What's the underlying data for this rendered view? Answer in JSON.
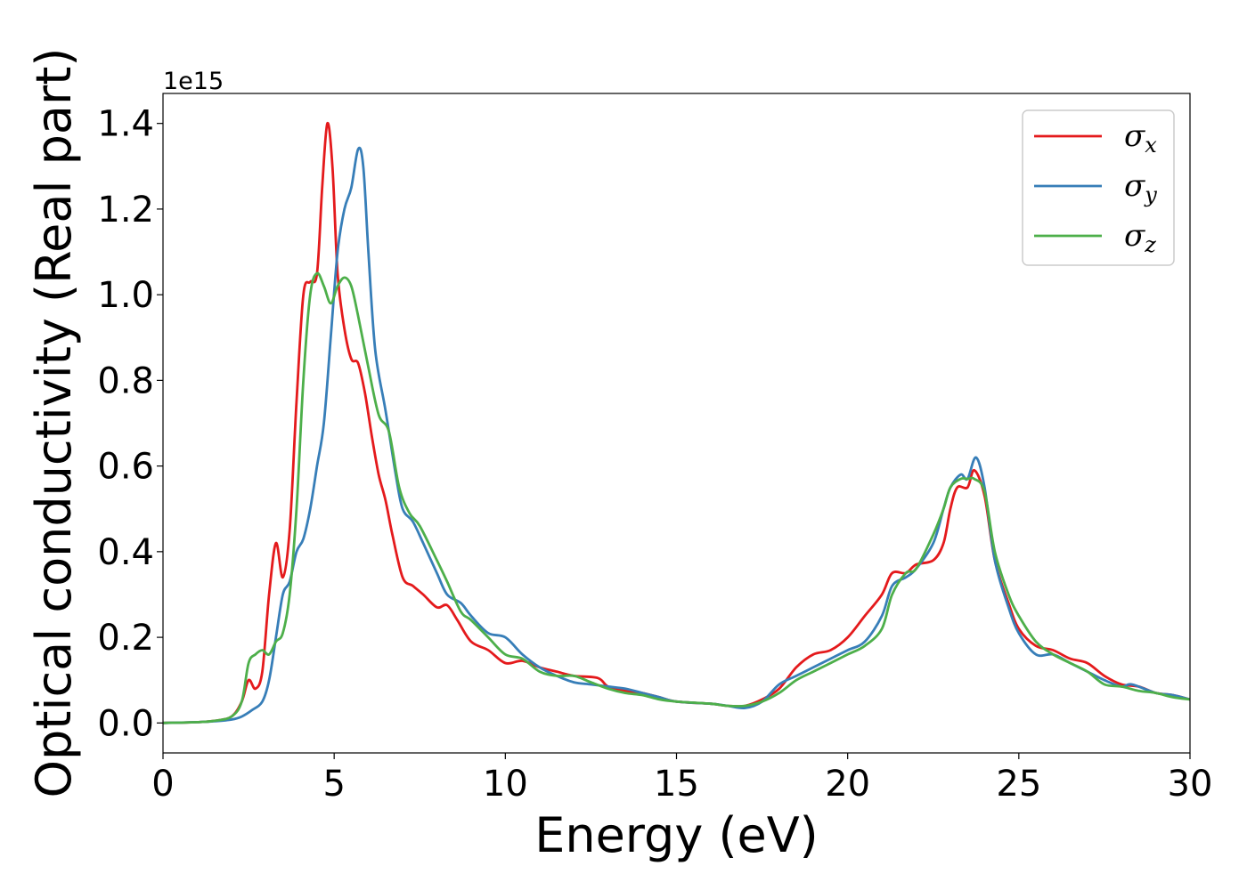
{
  "chart_data": {
    "type": "line",
    "xlabel": "Energy (eV)",
    "ylabel": "Optical conductivity (Real part)",
    "y_offset_label": "1e15",
    "xlim": [
      0,
      30
    ],
    "ylim": [
      -0.07,
      1.47
    ],
    "x_ticks": [
      0,
      5,
      10,
      15,
      20,
      25,
      30
    ],
    "x_tick_labels": [
      "0",
      "5",
      "10",
      "15",
      "20",
      "25",
      "30"
    ],
    "y_ticks": [
      0.0,
      0.2,
      0.4,
      0.6,
      0.8,
      1.0,
      1.2,
      1.4
    ],
    "y_tick_labels": [
      "0.0",
      "0.2",
      "0.4",
      "0.6",
      "0.8",
      "1.0",
      "1.2",
      "1.4"
    ],
    "grid": false,
    "legend_position": "top-right",
    "series": [
      {
        "legend_base": "σ",
        "legend_sub": "x",
        "color": "#e41a1c",
        "points": [
          [
            0,
            0
          ],
          [
            1,
            0.002
          ],
          [
            1.5,
            0.005
          ],
          [
            2,
            0.015
          ],
          [
            2.3,
            0.05
          ],
          [
            2.5,
            0.1
          ],
          [
            2.7,
            0.08
          ],
          [
            2.9,
            0.12
          ],
          [
            3.1,
            0.3
          ],
          [
            3.3,
            0.42
          ],
          [
            3.5,
            0.34
          ],
          [
            3.7,
            0.45
          ],
          [
            3.9,
            0.75
          ],
          [
            4.1,
            1.0
          ],
          [
            4.3,
            1.03
          ],
          [
            4.5,
            1.05
          ],
          [
            4.65,
            1.25
          ],
          [
            4.8,
            1.4
          ],
          [
            4.95,
            1.3
          ],
          [
            5.1,
            1.05
          ],
          [
            5.3,
            0.92
          ],
          [
            5.5,
            0.85
          ],
          [
            5.7,
            0.84
          ],
          [
            5.9,
            0.77
          ],
          [
            6.1,
            0.67
          ],
          [
            6.3,
            0.58
          ],
          [
            6.5,
            0.52
          ],
          [
            6.7,
            0.44
          ],
          [
            7.0,
            0.34
          ],
          [
            7.3,
            0.32
          ],
          [
            7.6,
            0.3
          ],
          [
            8.0,
            0.27
          ],
          [
            8.3,
            0.275
          ],
          [
            8.6,
            0.24
          ],
          [
            9.0,
            0.19
          ],
          [
            9.5,
            0.17
          ],
          [
            10,
            0.14
          ],
          [
            10.5,
            0.145
          ],
          [
            11,
            0.13
          ],
          [
            11.5,
            0.12
          ],
          [
            12,
            0.11
          ],
          [
            12.7,
            0.105
          ],
          [
            13,
            0.085
          ],
          [
            13.5,
            0.075
          ],
          [
            14,
            0.07
          ],
          [
            14.5,
            0.06
          ],
          [
            15,
            0.05
          ],
          [
            16,
            0.045
          ],
          [
            16.5,
            0.04
          ],
          [
            17,
            0.04
          ],
          [
            17.5,
            0.055
          ],
          [
            18,
            0.08
          ],
          [
            18.5,
            0.13
          ],
          [
            19,
            0.16
          ],
          [
            19.5,
            0.17
          ],
          [
            20,
            0.2
          ],
          [
            20.5,
            0.25
          ],
          [
            21,
            0.3
          ],
          [
            21.3,
            0.35
          ],
          [
            21.7,
            0.35
          ],
          [
            22,
            0.37
          ],
          [
            22.5,
            0.38
          ],
          [
            22.8,
            0.42
          ],
          [
            23,
            0.5
          ],
          [
            23.2,
            0.55
          ],
          [
            23.5,
            0.55
          ],
          [
            23.7,
            0.59
          ],
          [
            24,
            0.53
          ],
          [
            24.3,
            0.38
          ],
          [
            24.7,
            0.28
          ],
          [
            25,
            0.22
          ],
          [
            25.5,
            0.18
          ],
          [
            26,
            0.17
          ],
          [
            26.5,
            0.15
          ],
          [
            27,
            0.14
          ],
          [
            27.5,
            0.11
          ],
          [
            28,
            0.09
          ],
          [
            28.5,
            0.085
          ],
          [
            29,
            0.07
          ],
          [
            29.5,
            0.065
          ],
          [
            30,
            0.055
          ]
        ]
      },
      {
        "legend_base": "σ",
        "legend_sub": "y",
        "color": "#377eb8",
        "points": [
          [
            0,
            0
          ],
          [
            1,
            0.002
          ],
          [
            1.5,
            0.004
          ],
          [
            2,
            0.008
          ],
          [
            2.3,
            0.015
          ],
          [
            2.6,
            0.03
          ],
          [
            2.9,
            0.05
          ],
          [
            3.1,
            0.1
          ],
          [
            3.3,
            0.2
          ],
          [
            3.5,
            0.3
          ],
          [
            3.7,
            0.33
          ],
          [
            3.9,
            0.4
          ],
          [
            4.1,
            0.43
          ],
          [
            4.3,
            0.5
          ],
          [
            4.5,
            0.6
          ],
          [
            4.7,
            0.7
          ],
          [
            4.9,
            0.9
          ],
          [
            5.1,
            1.1
          ],
          [
            5.3,
            1.2
          ],
          [
            5.5,
            1.25
          ],
          [
            5.7,
            1.34
          ],
          [
            5.85,
            1.3
          ],
          [
            6.0,
            1.1
          ],
          [
            6.2,
            0.87
          ],
          [
            6.5,
            0.73
          ],
          [
            6.8,
            0.58
          ],
          [
            7.0,
            0.5
          ],
          [
            7.3,
            0.47
          ],
          [
            7.6,
            0.42
          ],
          [
            8.0,
            0.35
          ],
          [
            8.3,
            0.3
          ],
          [
            8.7,
            0.28
          ],
          [
            9.0,
            0.25
          ],
          [
            9.5,
            0.21
          ],
          [
            10,
            0.2
          ],
          [
            10.5,
            0.16
          ],
          [
            11,
            0.13
          ],
          [
            11.5,
            0.11
          ],
          [
            12,
            0.095
          ],
          [
            12.5,
            0.09
          ],
          [
            13,
            0.085
          ],
          [
            13.5,
            0.08
          ],
          [
            14,
            0.07
          ],
          [
            14.5,
            0.06
          ],
          [
            15,
            0.05
          ],
          [
            16,
            0.045
          ],
          [
            16.5,
            0.04
          ],
          [
            17,
            0.035
          ],
          [
            17.5,
            0.05
          ],
          [
            18,
            0.09
          ],
          [
            18.5,
            0.11
          ],
          [
            19,
            0.13
          ],
          [
            19.5,
            0.15
          ],
          [
            20,
            0.17
          ],
          [
            20.5,
            0.19
          ],
          [
            21,
            0.25
          ],
          [
            21.3,
            0.32
          ],
          [
            21.7,
            0.34
          ],
          [
            22,
            0.36
          ],
          [
            22.5,
            0.42
          ],
          [
            22.8,
            0.5
          ],
          [
            23,
            0.55
          ],
          [
            23.3,
            0.58
          ],
          [
            23.5,
            0.57
          ],
          [
            23.75,
            0.62
          ],
          [
            24,
            0.55
          ],
          [
            24.3,
            0.38
          ],
          [
            24.7,
            0.27
          ],
          [
            25,
            0.21
          ],
          [
            25.5,
            0.16
          ],
          [
            26,
            0.16
          ],
          [
            26.5,
            0.14
          ],
          [
            27,
            0.12
          ],
          [
            27.5,
            0.1
          ],
          [
            28,
            0.085
          ],
          [
            28.3,
            0.09
          ],
          [
            29,
            0.07
          ],
          [
            29.5,
            0.065
          ],
          [
            30,
            0.055
          ]
        ]
      },
      {
        "legend_base": "σ",
        "legend_sub": "z",
        "color": "#4daf4a",
        "points": [
          [
            0,
            0
          ],
          [
            1,
            0.002
          ],
          [
            1.5,
            0.005
          ],
          [
            2,
            0.015
          ],
          [
            2.3,
            0.05
          ],
          [
            2.5,
            0.14
          ],
          [
            2.7,
            0.16
          ],
          [
            2.9,
            0.17
          ],
          [
            3.1,
            0.16
          ],
          [
            3.3,
            0.19
          ],
          [
            3.5,
            0.21
          ],
          [
            3.7,
            0.3
          ],
          [
            3.9,
            0.5
          ],
          [
            4.1,
            0.8
          ],
          [
            4.3,
            1.0
          ],
          [
            4.5,
            1.05
          ],
          [
            4.7,
            1.02
          ],
          [
            4.9,
            0.98
          ],
          [
            5.1,
            1.02
          ],
          [
            5.3,
            1.04
          ],
          [
            5.5,
            1.02
          ],
          [
            5.7,
            0.95
          ],
          [
            6.0,
            0.83
          ],
          [
            6.3,
            0.72
          ],
          [
            6.6,
            0.68
          ],
          [
            6.9,
            0.55
          ],
          [
            7.2,
            0.49
          ],
          [
            7.5,
            0.46
          ],
          [
            8.0,
            0.38
          ],
          [
            8.3,
            0.33
          ],
          [
            8.7,
            0.26
          ],
          [
            9.0,
            0.24
          ],
          [
            9.5,
            0.2
          ],
          [
            10,
            0.16
          ],
          [
            10.5,
            0.15
          ],
          [
            11,
            0.12
          ],
          [
            11.5,
            0.11
          ],
          [
            12,
            0.11
          ],
          [
            12.5,
            0.095
          ],
          [
            13,
            0.08
          ],
          [
            13.5,
            0.07
          ],
          [
            14,
            0.065
          ],
          [
            14.5,
            0.055
          ],
          [
            15,
            0.05
          ],
          [
            16,
            0.045
          ],
          [
            16.5,
            0.04
          ],
          [
            17,
            0.04
          ],
          [
            17.5,
            0.05
          ],
          [
            18,
            0.07
          ],
          [
            18.5,
            0.1
          ],
          [
            19,
            0.12
          ],
          [
            19.5,
            0.14
          ],
          [
            20,
            0.16
          ],
          [
            20.5,
            0.18
          ],
          [
            21,
            0.22
          ],
          [
            21.3,
            0.3
          ],
          [
            21.7,
            0.35
          ],
          [
            22,
            0.36
          ],
          [
            22.5,
            0.44
          ],
          [
            22.8,
            0.5
          ],
          [
            23,
            0.55
          ],
          [
            23.3,
            0.57
          ],
          [
            23.5,
            0.57
          ],
          [
            23.7,
            0.57
          ],
          [
            24,
            0.54
          ],
          [
            24.3,
            0.4
          ],
          [
            24.7,
            0.3
          ],
          [
            25,
            0.25
          ],
          [
            25.5,
            0.19
          ],
          [
            26,
            0.16
          ],
          [
            26.5,
            0.14
          ],
          [
            27,
            0.12
          ],
          [
            27.5,
            0.09
          ],
          [
            28,
            0.085
          ],
          [
            28.5,
            0.075
          ],
          [
            29,
            0.07
          ],
          [
            29.5,
            0.06
          ],
          [
            30,
            0.055
          ]
        ]
      }
    ]
  }
}
